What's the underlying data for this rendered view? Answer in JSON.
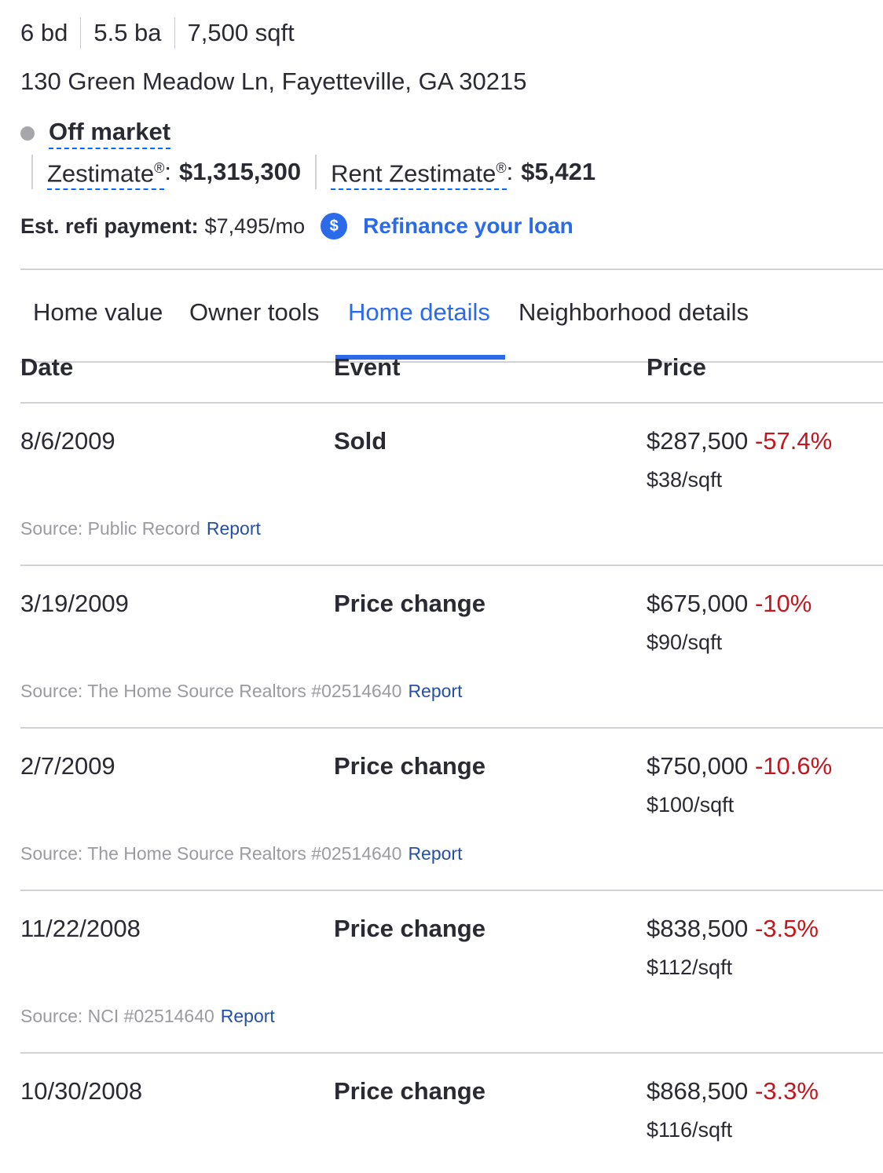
{
  "facts": {
    "beds": "6 bd",
    "baths": "5.5 ba",
    "sqft": "7,500 sqft"
  },
  "address": "130 Green Meadow Ln, Fayetteville, GA 30215",
  "status": {
    "label": "Off market"
  },
  "zestimate": {
    "label": "Zestimate",
    "reg": "®",
    "colon": ":",
    "value": "$1,315,300"
  },
  "rent_zestimate": {
    "label": "Rent Zestimate",
    "reg": "®",
    "colon": ":",
    "value": "$5,421"
  },
  "refi": {
    "label": "Est. refi payment:",
    "value": "$7,495/mo",
    "icon": "dollar-icon",
    "link": "Refinance your loan"
  },
  "tabs": [
    {
      "label": "Home value"
    },
    {
      "label": "Owner tools"
    },
    {
      "label": "Home details"
    },
    {
      "label": "Neighborhood details"
    }
  ],
  "active_tab": "Home details",
  "table": {
    "headers": {
      "date": "Date",
      "event": "Event",
      "price": "Price"
    },
    "rows": [
      {
        "date": "8/6/2009",
        "event": "Sold",
        "price": "$287,500",
        "change": "-57.4%",
        "persqft": "$38/sqft",
        "source": "Source: Public Record",
        "report": "Report"
      },
      {
        "date": "3/19/2009",
        "event": "Price change",
        "price": "$675,000",
        "change": "-10%",
        "persqft": "$90/sqft",
        "source": "Source: The Home Source Realtors #02514640",
        "report": "Report"
      },
      {
        "date": "2/7/2009",
        "event": "Price change",
        "price": "$750,000",
        "change": "-10.6%",
        "persqft": "$100/sqft",
        "source": "Source: The Home Source Realtors #02514640",
        "report": "Report"
      },
      {
        "date": "11/22/2008",
        "event": "Price change",
        "price": "$838,500",
        "change": "-3.5%",
        "persqft": "$112/sqft",
        "source": "Source: NCI #02514640",
        "report": "Report"
      },
      {
        "date": "10/30/2008",
        "event": "Price change",
        "price": "$868,500",
        "change": "-3.3%",
        "persqft": "$116/sqft",
        "source": "",
        "report": ""
      }
    ]
  },
  "colors": {
    "accent": "#2b6bea",
    "negative": "#c4161c",
    "muted": "#9a9aa0",
    "link": "#2550a4"
  }
}
